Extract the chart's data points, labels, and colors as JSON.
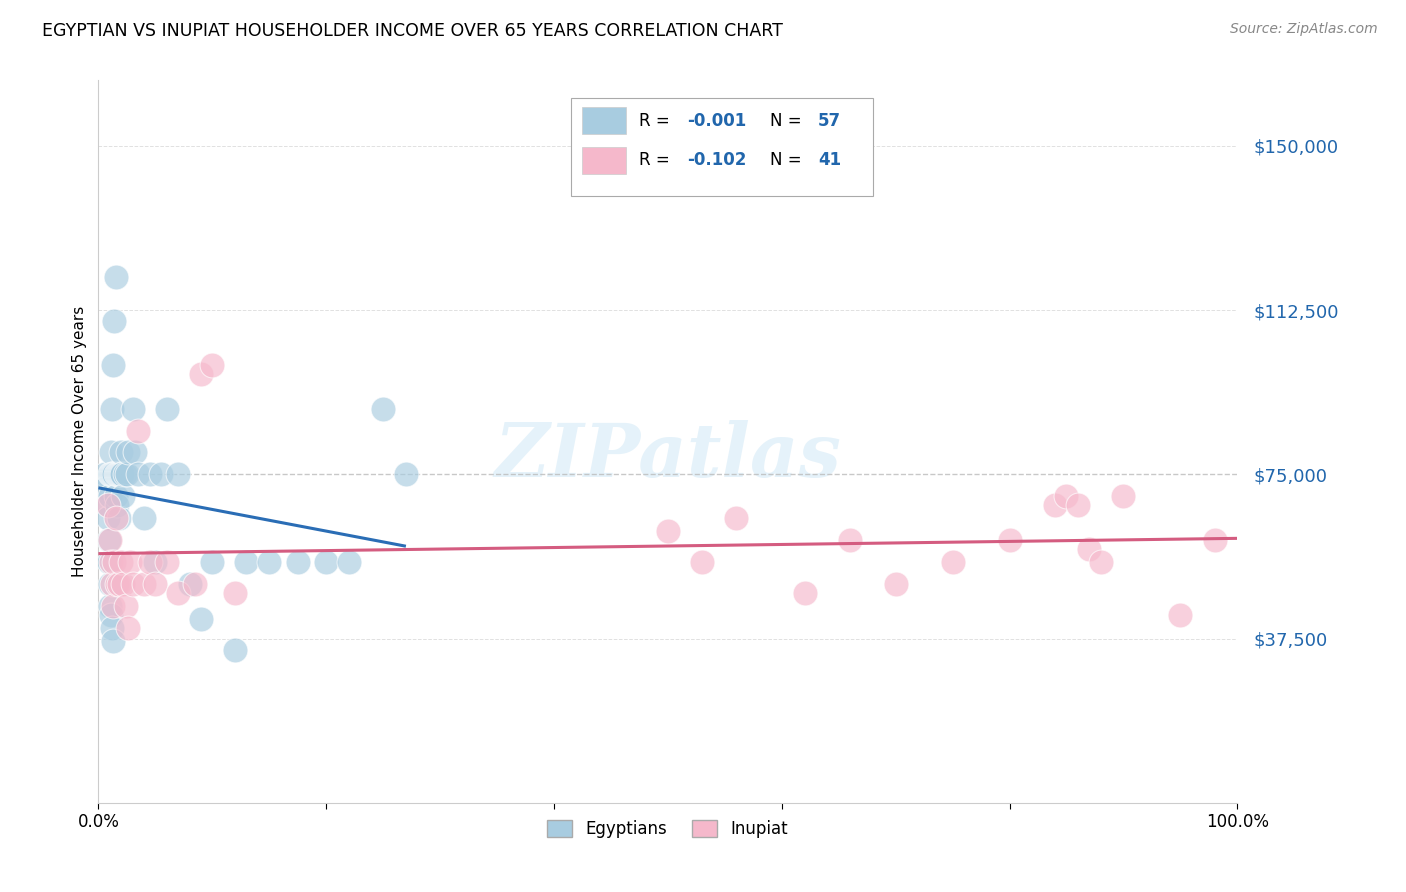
{
  "title": "EGYPTIAN VS INUPIAT HOUSEHOLDER INCOME OVER 65 YEARS CORRELATION CHART",
  "source": "Source: ZipAtlas.com",
  "ylabel": "Householder Income Over 65 years",
  "xlim": [
    0,
    1.0
  ],
  "ylim": [
    0,
    165000
  ],
  "yticks": [
    0,
    37500,
    75000,
    112500,
    150000
  ],
  "ytick_labels": [
    "",
    "$37,500",
    "$75,000",
    "$112,500",
    "$150,000"
  ],
  "xtick_labels": [
    "0.0%",
    "",
    "",
    "",
    "",
    "100.0%"
  ],
  "background_color": "#ffffff",
  "blue_color": "#a8cce0",
  "pink_color": "#f5b8cb",
  "blue_line_color": "#2a6db5",
  "pink_line_color": "#d45c80",
  "watermark": "ZIPatlas",
  "eg_x": [
    0.006,
    0.007,
    0.008,
    0.008,
    0.009,
    0.009,
    0.01,
    0.01,
    0.01,
    0.01,
    0.011,
    0.011,
    0.011,
    0.012,
    0.012,
    0.012,
    0.013,
    0.013,
    0.013,
    0.014,
    0.014,
    0.015,
    0.015,
    0.015,
    0.016,
    0.016,
    0.017,
    0.018,
    0.018,
    0.019,
    0.02,
    0.02,
    0.021,
    0.022,
    0.023,
    0.025,
    0.026,
    0.03,
    0.032,
    0.035,
    0.04,
    0.045,
    0.05,
    0.055,
    0.06,
    0.07,
    0.08,
    0.09,
    0.1,
    0.12,
    0.13,
    0.15,
    0.175,
    0.2,
    0.22,
    0.25,
    0.27
  ],
  "eg_y": [
    75000,
    72000,
    68000,
    65000,
    60000,
    55000,
    75000,
    70000,
    50000,
    45000,
    80000,
    75000,
    43000,
    90000,
    75000,
    40000,
    100000,
    75000,
    37000,
    110000,
    75000,
    120000,
    75000,
    70000,
    75000,
    68000,
    75000,
    75000,
    65000,
    75000,
    80000,
    75000,
    75000,
    70000,
    75000,
    75000,
    80000,
    90000,
    80000,
    75000,
    65000,
    75000,
    55000,
    75000,
    90000,
    75000,
    50000,
    42000,
    55000,
    35000,
    55000,
    55000,
    55000,
    55000,
    55000,
    90000,
    75000
  ],
  "in_x": [
    0.008,
    0.01,
    0.011,
    0.012,
    0.013,
    0.014,
    0.015,
    0.016,
    0.018,
    0.02,
    0.022,
    0.024,
    0.026,
    0.028,
    0.03,
    0.035,
    0.04,
    0.045,
    0.05,
    0.06,
    0.07,
    0.085,
    0.09,
    0.1,
    0.12,
    0.5,
    0.53,
    0.56,
    0.62,
    0.66,
    0.7,
    0.75,
    0.8,
    0.84,
    0.85,
    0.86,
    0.87,
    0.88,
    0.9,
    0.95,
    0.98
  ],
  "in_y": [
    68000,
    60000,
    55000,
    50000,
    45000,
    55000,
    65000,
    50000,
    50000,
    55000,
    50000,
    45000,
    40000,
    55000,
    50000,
    85000,
    50000,
    55000,
    50000,
    55000,
    48000,
    50000,
    98000,
    100000,
    48000,
    62000,
    55000,
    65000,
    48000,
    60000,
    50000,
    55000,
    60000,
    68000,
    70000,
    68000,
    58000,
    55000,
    70000,
    43000,
    60000
  ]
}
